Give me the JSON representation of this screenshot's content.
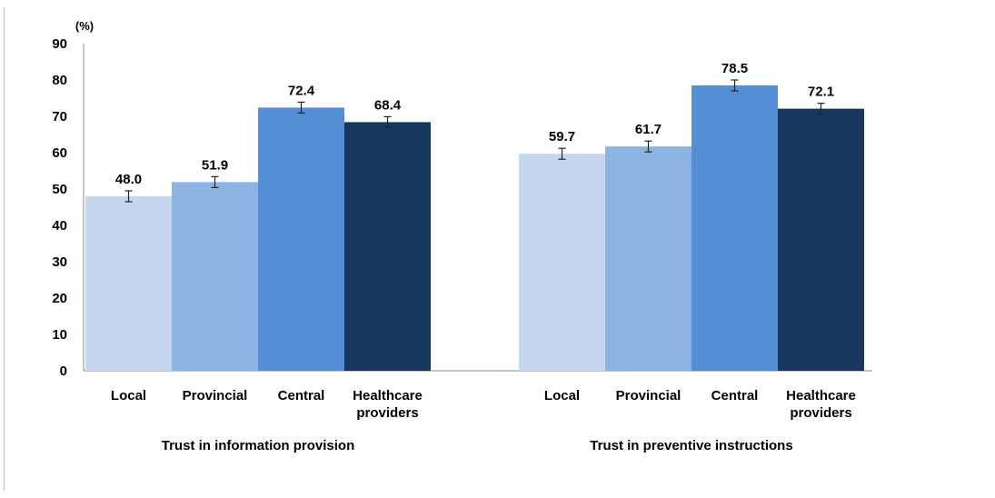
{
  "chart_data": {
    "type": "bar",
    "unit_label": "(%)",
    "ylim": [
      0,
      90
    ],
    "yticks": [
      0,
      10,
      20,
      30,
      40,
      50,
      60,
      70,
      80,
      90
    ],
    "grid": false,
    "groups": [
      {
        "label": "Trust in information provision",
        "categories": [
          {
            "lines": [
              "Local"
            ],
            "value": 48.0,
            "value_label": "48.0",
            "err": 1.5,
            "color": "#c5d6ef"
          },
          {
            "lines": [
              "Provincial"
            ],
            "value": 51.9,
            "value_label": "51.9",
            "err": 1.5,
            "color": "#8db3e2"
          },
          {
            "lines": [
              "Central"
            ],
            "value": 72.4,
            "value_label": "72.4",
            "err": 1.5,
            "color": "#558ed5"
          },
          {
            "lines": [
              "Healthcare",
              "providers"
            ],
            "value": 68.4,
            "value_label": "68.4",
            "err": 1.5,
            "color": "#17375e"
          }
        ]
      },
      {
        "label": "Trust in preventive instructions",
        "categories": [
          {
            "lines": [
              "Local"
            ],
            "value": 59.7,
            "value_label": "59.7",
            "err": 1.5,
            "color": "#c5d6ef"
          },
          {
            "lines": [
              "Provincial"
            ],
            "value": 61.7,
            "value_label": "61.7",
            "err": 1.5,
            "color": "#8db3e2"
          },
          {
            "lines": [
              "Central"
            ],
            "value": 78.5,
            "value_label": "78.5",
            "err": 1.5,
            "color": "#558ed5"
          },
          {
            "lines": [
              "Healthcare",
              "providers"
            ],
            "value": 72.1,
            "value_label": "72.1",
            "err": 1.5,
            "color": "#17375e"
          }
        ]
      }
    ]
  }
}
